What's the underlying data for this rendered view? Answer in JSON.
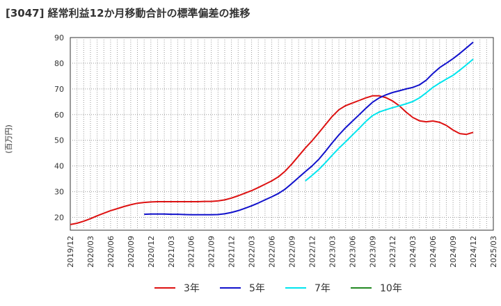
{
  "chart_data": {
    "type": "line",
    "title": "[3047]  経常利益12か月移動合計の標準偏差の推移",
    "ylabel": "(百万円)",
    "xlabel": "",
    "ylim": [
      15,
      90
    ],
    "yticks": [
      20,
      30,
      40,
      50,
      60,
      70,
      80,
      90
    ],
    "x_ticks": [
      "2019/12",
      "2020/03",
      "2020/06",
      "2020/09",
      "2020/12",
      "2021/03",
      "2021/06",
      "2021/09",
      "2021/12",
      "2022/03",
      "2022/06",
      "2022/09",
      "2022/12",
      "2023/03",
      "2023/06",
      "2023/09",
      "2023/12",
      "2024/03",
      "2024/06",
      "2024/09",
      "2024/12",
      "2025/03"
    ],
    "grid": true,
    "legend_position": "bottom",
    "series": [
      {
        "name": "3年",
        "color": "#dd1111",
        "x": [
          "2019/12",
          "2020/01",
          "2020/02",
          "2020/03",
          "2020/04",
          "2020/05",
          "2020/06",
          "2020/07",
          "2020/08",
          "2020/09",
          "2020/10",
          "2020/11",
          "2020/12",
          "2021/01",
          "2021/02",
          "2021/03",
          "2021/04",
          "2021/05",
          "2021/06",
          "2021/07",
          "2021/08",
          "2021/09",
          "2021/10",
          "2021/11",
          "2021/12",
          "2022/01",
          "2022/02",
          "2022/03",
          "2022/04",
          "2022/05",
          "2022/06",
          "2022/07",
          "2022/08",
          "2022/09",
          "2022/10",
          "2022/11",
          "2022/12",
          "2023/01",
          "2023/02",
          "2023/03",
          "2023/04",
          "2023/05",
          "2023/06",
          "2023/07",
          "2023/08",
          "2023/09",
          "2023/10",
          "2023/11",
          "2023/12",
          "2024/01",
          "2024/02",
          "2024/03",
          "2024/04",
          "2024/05",
          "2024/06",
          "2024/07",
          "2024/08",
          "2024/09",
          "2024/10",
          "2024/11",
          "2024/12"
        ],
        "values": [
          17.2,
          17.7,
          18.5,
          19.5,
          20.6,
          21.6,
          22.6,
          23.4,
          24.2,
          24.9,
          25.5,
          25.8,
          26.0,
          26.1,
          26.1,
          26.1,
          26.1,
          26.1,
          26.1,
          26.1,
          26.2,
          26.2,
          26.4,
          26.8,
          27.5,
          28.4,
          29.4,
          30.4,
          31.6,
          32.9,
          34.2,
          35.8,
          38.0,
          40.8,
          43.9,
          47.0,
          49.8,
          52.9,
          56.1,
          59.3,
          61.9,
          63.5,
          64.5,
          65.5,
          66.5,
          67.3,
          67.3,
          66.6,
          65.3,
          63.4,
          61.0,
          58.9,
          57.6,
          57.2,
          57.5,
          57.0,
          55.8,
          54.0,
          52.6,
          52.3,
          53.1
        ]
      },
      {
        "name": "5年",
        "color": "#1111cc",
        "x": [
          "2020/11",
          "2020/12",
          "2021/01",
          "2021/02",
          "2021/03",
          "2021/04",
          "2021/05",
          "2021/06",
          "2021/07",
          "2021/08",
          "2021/09",
          "2021/10",
          "2021/11",
          "2021/12",
          "2022/01",
          "2022/02",
          "2022/03",
          "2022/04",
          "2022/05",
          "2022/06",
          "2022/07",
          "2022/08",
          "2022/09",
          "2022/10",
          "2022/11",
          "2022/12",
          "2023/01",
          "2023/02",
          "2023/03",
          "2023/04",
          "2023/05",
          "2023/06",
          "2023/07",
          "2023/08",
          "2023/09",
          "2023/10",
          "2023/11",
          "2023/12",
          "2024/01",
          "2024/02",
          "2024/03",
          "2024/04",
          "2024/05",
          "2024/06",
          "2024/07",
          "2024/08",
          "2024/09",
          "2024/10",
          "2024/11",
          "2024/12"
        ],
        "values": [
          21.2,
          21.3,
          21.3,
          21.3,
          21.2,
          21.2,
          21.1,
          21.0,
          21.0,
          21.0,
          21.0,
          21.1,
          21.4,
          21.9,
          22.6,
          23.5,
          24.5,
          25.6,
          26.8,
          28.0,
          29.3,
          31.0,
          33.2,
          35.5,
          37.8,
          40.0,
          42.6,
          45.7,
          49.0,
          52.1,
          54.9,
          57.4,
          59.9,
          62.4,
          64.8,
          66.5,
          67.7,
          68.6,
          69.3,
          70.0,
          70.6,
          71.6,
          73.4,
          76.0,
          78.3,
          80.0,
          81.8,
          83.8,
          86.0,
          88.2
        ]
      },
      {
        "name": "7年",
        "color": "#00e5ee",
        "x": [
          "2022/11",
          "2022/12",
          "2023/01",
          "2023/02",
          "2023/03",
          "2023/04",
          "2023/05",
          "2023/06",
          "2023/07",
          "2023/08",
          "2023/09",
          "2023/10",
          "2023/11",
          "2023/12",
          "2024/01",
          "2024/02",
          "2024/03",
          "2024/04",
          "2024/05",
          "2024/06",
          "2024/07",
          "2024/08",
          "2024/09",
          "2024/10",
          "2024/11",
          "2024/12"
        ],
        "values": [
          34.2,
          36.3,
          38.6,
          41.3,
          44.2,
          46.9,
          49.4,
          52.0,
          54.6,
          57.3,
          59.6,
          61.0,
          61.9,
          62.7,
          63.4,
          64.2,
          65.1,
          66.5,
          68.5,
          70.6,
          72.3,
          73.8,
          75.3,
          77.3,
          79.4,
          81.6
        ]
      },
      {
        "name": "10年",
        "color": "#228822",
        "x": [],
        "values": []
      }
    ]
  }
}
